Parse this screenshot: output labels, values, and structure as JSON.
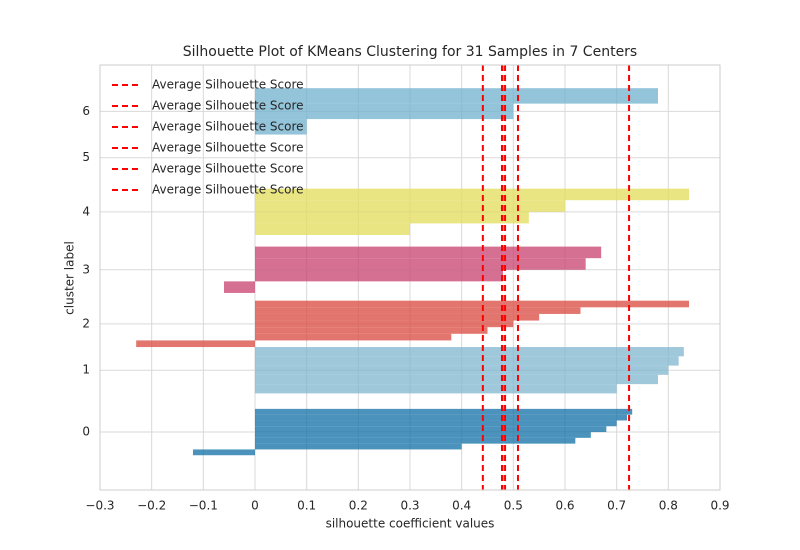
{
  "chart_data": {
    "type": "silhouette",
    "title": "Silhouette Plot of KMeans Clustering for 31 Samples in 7 Centers",
    "xlabel": "silhouette coefficient values",
    "ylabel": "cluster label",
    "xlim": [
      -0.3,
      0.9
    ],
    "xticks": [
      {
        "value": -0.3,
        "label": "−0.3"
      },
      {
        "value": -0.2,
        "label": "−0.2"
      },
      {
        "value": -0.1,
        "label": "−0.1"
      },
      0,
      0.1,
      0.2,
      0.3,
      0.4,
      0.5,
      0.6,
      0.7,
      0.8,
      0.9
    ],
    "ylim": [
      0,
      110
    ],
    "yticks": [
      {
        "value": 15,
        "label": "0"
      },
      {
        "value": 31,
        "label": "1"
      },
      {
        "value": 43,
        "label": "2"
      },
      {
        "value": 57,
        "label": "3"
      },
      {
        "value": 72,
        "label": "4"
      },
      {
        "value": 86,
        "label": "5"
      },
      {
        "value": 98,
        "label": "6"
      }
    ],
    "grid": true,
    "clusters": [
      {
        "color": "#0f6fa6",
        "values": [
          0.73,
          0.72,
          0.7,
          0.68,
          0.65,
          0.62,
          0.4,
          -0.12
        ]
      },
      {
        "color": "#7fb5cf",
        "values": [
          0.83,
          0.82,
          0.8,
          0.78,
          0.7
        ]
      },
      {
        "color": "#d9473f",
        "values": [
          0.84,
          0.63,
          0.55,
          0.5,
          0.45,
          0.38,
          -0.23
        ]
      },
      {
        "color": "#c8406e",
        "values": [
          0.67,
          0.64,
          0.48,
          -0.06
        ]
      },
      {
        "color": "#e3dc5a",
        "values": [
          0.84,
          0.6,
          0.53,
          0.3
        ]
      },
      {
        "color": "#d48ab8",
        "values": []
      },
      {
        "color": "#6fb0cc",
        "values": [
          0.78,
          0.5,
          0.1
        ]
      }
    ],
    "line_color": "#ff0000",
    "legend": "upper left",
    "avg_lines": [
      {
        "name": "Average Silhouette Score",
        "value": 0.441
      },
      {
        "name": "Average Silhouette Score",
        "value": 0.478
      },
      {
        "name": "Average Silhouette Score",
        "value": 0.479
      },
      {
        "name": "Average Silhouette Score",
        "value": 0.484
      },
      {
        "name": "Average Silhouette Score",
        "value": 0.509
      },
      {
        "name": "Average Silhouette Score",
        "value": 0.724
      }
    ]
  }
}
